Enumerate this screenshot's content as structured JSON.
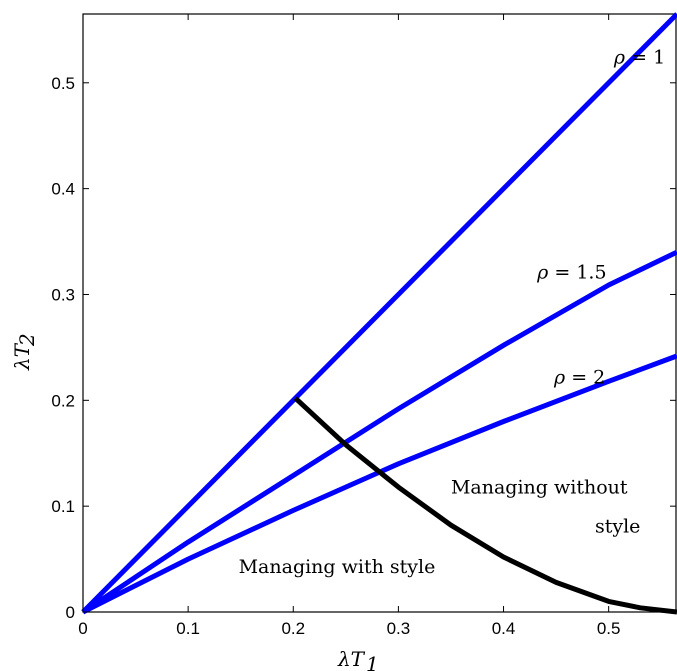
{
  "chart_data": {
    "type": "line",
    "title": "",
    "xlabel_main": "λT",
    "xlabel_sub": "1",
    "ylabel_main": "λT",
    "ylabel_sub": "2",
    "xlim": [
      0,
      0.565
    ],
    "ylim": [
      0,
      0.565
    ],
    "xticks": [
      0,
      0.1,
      0.2,
      0.3,
      0.4,
      0.5
    ],
    "yticks": [
      0,
      0.1,
      0.2,
      0.3,
      0.4,
      0.5
    ],
    "xtick_labels": [
      "0",
      "0.1",
      "0.2",
      "0.3",
      "0.4",
      "0.5"
    ],
    "ytick_labels": [
      "0",
      "0.1",
      "0.2",
      "0.3",
      "0.4",
      "0.5"
    ],
    "grid": false,
    "series": [
      {
        "color": "#0000ff",
        "label_rho": "ρ",
        "label_value": "= 1",
        "label_at": [
          0.505,
          0.518
        ],
        "x": [
          0,
          0.565
        ],
        "y": [
          0,
          0.565
        ]
      },
      {
        "color": "#0000ff",
        "label_rho": "ρ",
        "label_value": "= 1.5",
        "label_at": [
          0.432,
          0.315
        ],
        "x": [
          0,
          0.1,
          0.2,
          0.3,
          0.4,
          0.5,
          0.565
        ],
        "y": [
          0,
          0.066,
          0.129,
          0.192,
          0.252,
          0.309,
          0.34
        ]
      },
      {
        "color": "#0000ff",
        "label_rho": "ρ",
        "label_value": "= 2",
        "label_at": [
          0.448,
          0.216
        ],
        "x": [
          0,
          0.1,
          0.2,
          0.3,
          0.4,
          0.5,
          0.565
        ],
        "y": [
          0,
          0.05,
          0.096,
          0.14,
          0.18,
          0.218,
          0.242
        ]
      },
      {
        "color": "#000000",
        "x": [
          0.202,
          0.25,
          0.3,
          0.35,
          0.4,
          0.45,
          0.5,
          0.53,
          0.565
        ],
        "y": [
          0.202,
          0.158,
          0.118,
          0.082,
          0.052,
          0.028,
          0.01,
          0.004,
          0
        ]
      }
    ],
    "annotations": [
      {
        "text": "Managing with style",
        "at": [
          0.148,
          0.037
        ]
      },
      {
        "text": "Managing without",
        "at": [
          0.35,
          0.112
        ]
      },
      {
        "text": "style",
        "at": [
          0.487,
          0.075
        ]
      }
    ]
  }
}
